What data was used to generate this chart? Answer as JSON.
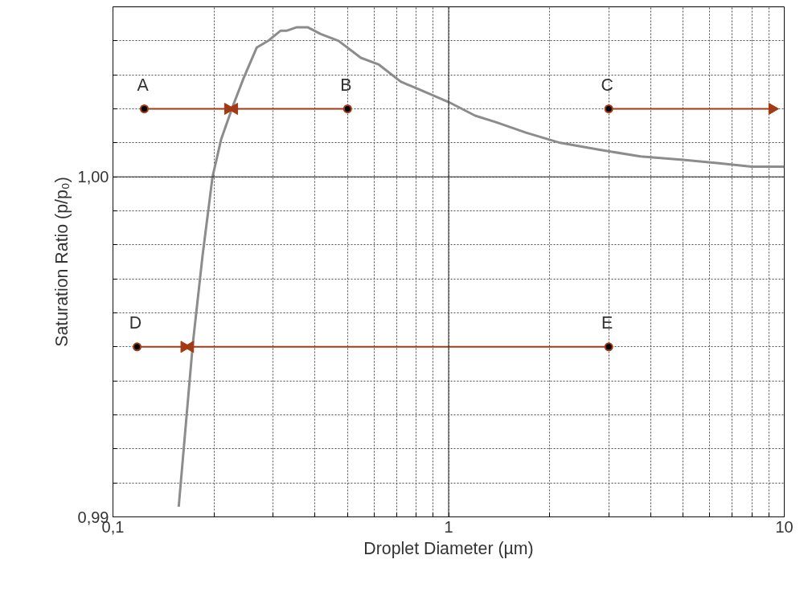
{
  "chart_data": {
    "type": "line",
    "xlabel": "Droplet Diameter (µm)",
    "ylabel": "Saturation Ratio (p/p₀)",
    "log": "x",
    "grid": true,
    "xlim": [
      0.1,
      10
    ],
    "ylim": [
      0.99,
      1.005
    ],
    "xticks": [
      {
        "value": 0.1,
        "label": "0,1"
      },
      {
        "value": 0.2,
        "label": null
      },
      {
        "value": 0.3,
        "label": null
      },
      {
        "value": 0.4,
        "label": null
      },
      {
        "value": 0.5,
        "label": null
      },
      {
        "value": 0.6,
        "label": null
      },
      {
        "value": 0.7,
        "label": null
      },
      {
        "value": 0.8,
        "label": null
      },
      {
        "value": 0.9,
        "label": null
      },
      1,
      {
        "value": 2,
        "label": null
      },
      {
        "value": 3,
        "label": null
      },
      {
        "value": 4,
        "label": null
      },
      {
        "value": 5,
        "label": null
      },
      {
        "value": 6,
        "label": null
      },
      {
        "value": 7,
        "label": null
      },
      {
        "value": 8,
        "label": null
      },
      {
        "value": 9,
        "label": null
      },
      10
    ],
    "yticks": [
      {
        "value": 0.99,
        "label": "0,99"
      },
      {
        "value": 0.991,
        "label": null
      },
      {
        "value": 0.992,
        "label": null
      },
      {
        "value": 0.993,
        "label": null
      },
      {
        "value": 0.994,
        "label": null
      },
      {
        "value": 0.995,
        "label": null
      },
      {
        "value": 0.996,
        "label": null
      },
      {
        "value": 0.997,
        "label": null
      },
      {
        "value": 0.998,
        "label": null
      },
      {
        "value": 0.999,
        "label": null
      },
      {
        "value": 1.0,
        "label": "1,00"
      },
      {
        "value": 1.001,
        "label": null
      },
      {
        "value": 1.002,
        "label": null
      },
      {
        "value": 1.003,
        "label": null
      },
      {
        "value": 1.004,
        "label": null
      }
    ],
    "series": [
      {
        "color": "#8c8c8c",
        "marker": "none",
        "x": [
          0.157,
          0.173,
          0.185,
          0.198,
          0.21,
          0.228,
          0.245,
          0.268,
          0.29,
          0.316,
          0.33,
          0.353,
          0.38,
          0.416,
          0.47,
          0.548,
          0.62,
          0.72,
          0.85,
          1.0,
          1.2,
          1.39,
          1.7,
          2.15,
          2.8,
          3.73,
          5,
          6.4,
          8,
          10
        ],
        "values": [
          0.9903,
          0.9951,
          0.9977,
          1.0,
          1.0011,
          1.0021,
          1.0029,
          1.0038,
          1.004,
          1.0043,
          1.0043,
          1.0044,
          1.0044,
          1.0042,
          1.004,
          1.0035,
          1.0033,
          1.0028,
          1.0025,
          1.0022,
          1.0018,
          1.0016,
          1.0013,
          1.001,
          1.0008,
          1.0006,
          1.0005,
          1.0004,
          1.0003,
          1.0003
        ]
      },
      {
        "type": "line",
        "color": "#a33a16",
        "marker": "circle",
        "x": [
          0.124,
          0.22
        ],
        "values": [
          1.002,
          1.002
        ]
      },
      {
        "type": "line",
        "color": "#a33a16",
        "marker": "circle",
        "x": [
          0.5,
          0.23
        ],
        "values": [
          1.002,
          1.002
        ]
      },
      {
        "type": "line",
        "color": "#a33a16",
        "marker": "circle",
        "x": [
          3,
          9.2
        ],
        "values": [
          1.002,
          1.002
        ]
      },
      {
        "type": "line",
        "color": "#a33a16",
        "marker": "circle",
        "x": [
          0.118,
          0.163
        ],
        "values": [
          0.995,
          0.995
        ]
      },
      {
        "type": "line",
        "color": "#a33a16",
        "marker": "circle",
        "x": [
          3,
          0.17
        ],
        "values": [
          0.995,
          0.995
        ]
      }
    ],
    "annotations": [
      {
        "text": "A",
        "x": 0.124,
        "y": 1.002
      },
      {
        "text": "B",
        "x": 0.5,
        "y": 1.002
      },
      {
        "text": "C",
        "x": 3,
        "y": 1.002
      },
      {
        "text": "D",
        "x": 0.118,
        "y": 0.995
      },
      {
        "text": "E",
        "x": 3,
        "y": 0.995
      }
    ]
  }
}
